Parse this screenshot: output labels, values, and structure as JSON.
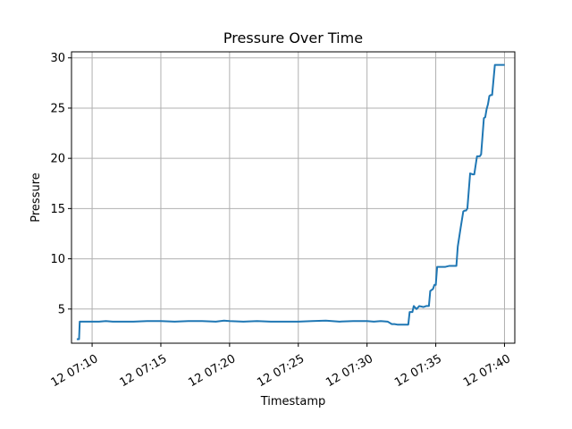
{
  "chart_data": {
    "type": "line",
    "title": "Pressure Over Time",
    "xlabel": "Timestamp",
    "ylabel": "Pressure",
    "grid": true,
    "x_ticks": [
      "12 07:10",
      "12 07:15",
      "12 07:20",
      "12 07:25",
      "12 07:30",
      "12 07:35",
      "12 07:40"
    ],
    "y_ticks": [
      "5",
      "10",
      "15",
      "20",
      "25",
      "30"
    ],
    "x_tick_minutes": [
      10,
      15,
      20,
      25,
      30,
      35,
      40
    ],
    "y_tick_values": [
      5,
      10,
      15,
      20,
      25,
      30
    ],
    "xlim_minutes": [
      8.5,
      40.75
    ],
    "ylim": [
      1.6,
      30.6
    ],
    "x_unit": "minutes past 07:00 on day 12",
    "colors": {
      "line": "#1f77b4",
      "grid": "#b0b0b0"
    },
    "series": [
      {
        "x": [
          8.95,
          9.05,
          9.1,
          9.5,
          10.0,
          10.5,
          11.0,
          11.5,
          12.0,
          13.0,
          14.0,
          15.0,
          16.0,
          17.0,
          18.0,
          19.0,
          19.6,
          20.0,
          21.0,
          22.0,
          23.0,
          24.0,
          25.0,
          26.0,
          27.0,
          28.0,
          29.0,
          30.0,
          30.5,
          31.0,
          31.5,
          31.8,
          32.0,
          32.2,
          32.5,
          32.8,
          33.0,
          33.1,
          33.3,
          33.4,
          33.6,
          33.8,
          34.1,
          34.3,
          34.5,
          34.6,
          34.8,
          34.9,
          35.0,
          35.1,
          35.5,
          35.7,
          36.0,
          36.2,
          36.4,
          36.5,
          36.6,
          36.8,
          37.0,
          37.1,
          37.2,
          37.3,
          37.5,
          37.7,
          37.8,
          38.0,
          38.2,
          38.3,
          38.5,
          38.6,
          38.7,
          38.8,
          38.9,
          39.0,
          39.1,
          39.3,
          39.5,
          39.7,
          39.95
        ],
        "y": [
          2.0,
          2.0,
          3.75,
          3.75,
          3.75,
          3.75,
          3.8,
          3.75,
          3.75,
          3.75,
          3.8,
          3.8,
          3.75,
          3.8,
          3.8,
          3.75,
          3.85,
          3.8,
          3.75,
          3.8,
          3.75,
          3.75,
          3.75,
          3.8,
          3.85,
          3.75,
          3.8,
          3.8,
          3.75,
          3.8,
          3.75,
          3.5,
          3.5,
          3.45,
          3.45,
          3.45,
          3.45,
          4.7,
          4.7,
          5.3,
          5.0,
          5.3,
          5.2,
          5.3,
          5.3,
          6.8,
          7.0,
          7.4,
          7.4,
          9.2,
          9.2,
          9.2,
          9.3,
          9.3,
          9.3,
          9.3,
          11.2,
          13.0,
          14.7,
          14.8,
          14.8,
          15.0,
          18.5,
          18.4,
          18.4,
          20.2,
          20.2,
          20.4,
          24.0,
          24.1,
          24.9,
          25.4,
          26.2,
          26.3,
          26.3,
          29.3,
          29.3,
          29.3,
          29.3
        ]
      }
    ]
  }
}
